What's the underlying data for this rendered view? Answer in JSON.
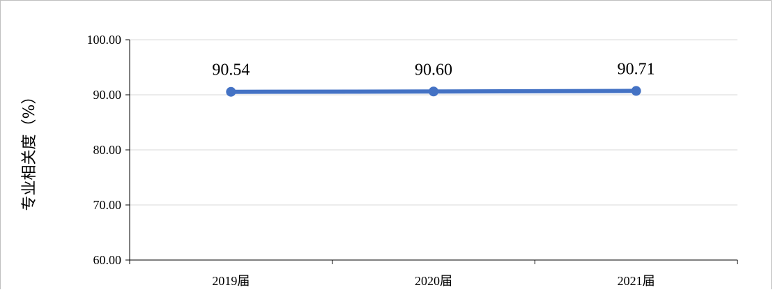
{
  "chart_data": {
    "type": "line",
    "title": "",
    "xlabel": "",
    "ylabel": "专业相关度（%）",
    "categories": [
      "2019届",
      "2020届",
      "2021届"
    ],
    "series": [
      {
        "values": [
          90.54,
          90.6,
          90.71
        ],
        "data_labels": [
          "90.54",
          "90.60",
          "90.71"
        ]
      }
    ],
    "ylim": [
      60,
      100
    ],
    "y_ticks": [
      60,
      70,
      80,
      90,
      100
    ],
    "y_tick_labels": [
      "60.00",
      "70.00",
      "80.00",
      "90.00",
      "100.00"
    ],
    "grid": true,
    "legend": "none",
    "colors": {
      "line": "#4472C4",
      "marker": "#4472C4",
      "grid": "#d9d9d9",
      "axis": "#000000"
    }
  }
}
